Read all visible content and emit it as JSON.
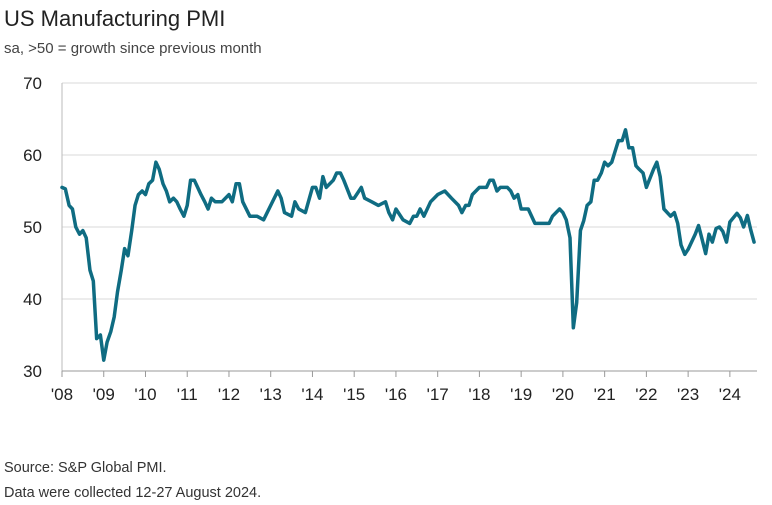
{
  "chart_data": {
    "type": "line",
    "title": "US Manufacturing PMI",
    "subtitle": "sa, >50 = growth since previous month",
    "source": "Source: S&P Global PMI.",
    "note": "Data were collected 12-27 August 2024.",
    "x": [
      2008.0,
      2008.08,
      2008.17,
      2008.25,
      2008.33,
      2008.42,
      2008.5,
      2008.58,
      2008.67,
      2008.75,
      2008.83,
      2008.92,
      2009.0,
      2009.08,
      2009.17,
      2009.25,
      2009.33,
      2009.42,
      2009.5,
      2009.58,
      2009.67,
      2009.75,
      2009.83,
      2009.92,
      2010.0,
      2010.08,
      2010.17,
      2010.25,
      2010.33,
      2010.42,
      2010.5,
      2010.58,
      2010.67,
      2010.75,
      2010.83,
      2010.92,
      2011.0,
      2011.08,
      2011.17,
      2011.25,
      2011.33,
      2011.42,
      2011.5,
      2011.58,
      2011.67,
      2011.83,
      2012.0,
      2012.08,
      2012.17,
      2012.25,
      2012.33,
      2012.5,
      2012.67,
      2012.83,
      2013.0,
      2013.17,
      2013.25,
      2013.33,
      2013.5,
      2013.58,
      2013.67,
      2013.83,
      2014.0,
      2014.08,
      2014.17,
      2014.25,
      2014.33,
      2014.5,
      2014.58,
      2014.67,
      2014.75,
      2014.92,
      2015.0,
      2015.17,
      2015.25,
      2015.42,
      2015.58,
      2015.75,
      2015.83,
      2015.92,
      2016.0,
      2016.17,
      2016.33,
      2016.42,
      2016.5,
      2016.58,
      2016.67,
      2016.83,
      2017.0,
      2017.17,
      2017.33,
      2017.5,
      2017.58,
      2017.67,
      2017.75,
      2017.83,
      2018.0,
      2018.17,
      2018.25,
      2018.33,
      2018.42,
      2018.5,
      2018.67,
      2018.75,
      2018.83,
      2018.92,
      2019.0,
      2019.17,
      2019.33,
      2019.5,
      2019.67,
      2019.75,
      2019.92,
      2020.0,
      2020.08,
      2020.17,
      2020.25,
      2020.33,
      2020.42,
      2020.5,
      2020.58,
      2020.67,
      2020.75,
      2020.83,
      2020.92,
      2021.0,
      2021.08,
      2021.17,
      2021.25,
      2021.33,
      2021.42,
      2021.5,
      2021.58,
      2021.67,
      2021.75,
      2021.83,
      2021.92,
      2022.0,
      2022.17,
      2022.25,
      2022.33,
      2022.42,
      2022.58,
      2022.67,
      2022.75,
      2022.83,
      2022.92,
      2023.0,
      2023.17,
      2023.25,
      2023.33,
      2023.42,
      2023.5,
      2023.58,
      2023.67,
      2023.75,
      2023.83,
      2023.92,
      2024.0,
      2024.17,
      2024.25,
      2024.33,
      2024.42,
      2024.5,
      2024.58
    ],
    "series": [
      {
        "name": "US Manufacturing PMI",
        "color": "#0f6c82",
        "values": [
          55.5,
          55.3,
          53,
          52.5,
          50,
          49,
          49.5,
          48.5,
          44,
          42.5,
          34.5,
          35,
          31.5,
          34,
          35.5,
          37.5,
          41,
          44,
          47,
          46,
          49.5,
          53,
          54.5,
          55,
          54.5,
          56,
          56.5,
          59,
          58,
          56,
          55,
          53.5,
          54,
          53.5,
          52.5,
          51.5,
          53,
          56.5,
          56.5,
          55.5,
          54.5,
          53.5,
          52.5,
          54,
          53.5,
          53.5,
          54.5,
          53.5,
          56,
          56,
          53.5,
          51.5,
          51.5,
          51,
          53,
          55,
          54,
          52,
          51.5,
          53.5,
          52.5,
          52,
          55.5,
          55.5,
          54,
          57,
          55.5,
          56.5,
          57.5,
          57.5,
          56.5,
          54,
          54,
          55.5,
          54,
          53.5,
          53,
          53.5,
          52,
          51,
          52.5,
          51,
          50.5,
          51.5,
          51.5,
          52.5,
          51.5,
          53.5,
          54.5,
          55,
          54,
          53,
          52,
          53,
          53,
          54.5,
          55.5,
          55.5,
          56.5,
          56.5,
          55,
          55.5,
          55.5,
          55,
          54,
          54.5,
          52.5,
          52.5,
          50.5,
          50.5,
          50.5,
          51.5,
          52.5,
          52,
          51,
          48.5,
          36,
          39.5,
          49.5,
          50.9,
          53,
          53.5,
          56.5,
          56.5,
          57.5,
          59,
          58.5,
          59,
          60.5,
          62,
          62,
          63.5,
          61,
          61,
          58.5,
          58,
          57.5,
          55.5,
          58,
          59,
          57,
          52.5,
          51.5,
          52,
          50.5,
          47.5,
          46.2,
          46.9,
          49,
          50.2,
          48.4,
          46.3,
          49,
          47.9,
          49.8,
          50,
          49.4,
          47.9,
          50.7,
          51.9,
          51.3,
          50,
          51.6,
          49.6,
          47.9
        ]
      }
    ],
    "xlim": [
      2008,
      2024.65
    ],
    "xticks": [
      {
        "value": 2008,
        "label": "'08"
      },
      {
        "value": 2009,
        "label": "'09"
      },
      {
        "value": 2010,
        "label": "'10"
      },
      {
        "value": 2011,
        "label": "'11"
      },
      {
        "value": 2012,
        "label": "'12"
      },
      {
        "value": 2013,
        "label": "'13"
      },
      {
        "value": 2014,
        "label": "'14"
      },
      {
        "value": 2015,
        "label": "'15"
      },
      {
        "value": 2016,
        "label": "'16"
      },
      {
        "value": 2017,
        "label": "'17"
      },
      {
        "value": 2018,
        "label": "'18"
      },
      {
        "value": 2019,
        "label": "'19"
      },
      {
        "value": 2020,
        "label": "'20"
      },
      {
        "value": 2021,
        "label": "'21"
      },
      {
        "value": 2022,
        "label": "'22"
      },
      {
        "value": 2023,
        "label": "'23"
      },
      {
        "value": 2024,
        "label": "'24"
      }
    ],
    "ylim": [
      30,
      70
    ],
    "yticks": [
      30,
      40,
      50,
      60,
      70
    ],
    "grid": true
  }
}
